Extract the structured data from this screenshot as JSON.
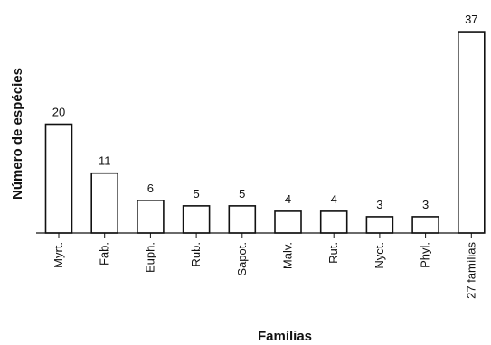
{
  "chart_data": {
    "type": "bar",
    "xlabel": "Famílias",
    "ylabel": "Número de espécies",
    "categories": [
      "Myrt.",
      "Fab.",
      "Euph.",
      "Rub.",
      "Sapot.",
      "Malv.",
      "Rut.",
      "Nyct.",
      "Phyl.",
      "27 famílias"
    ],
    "values": [
      20,
      11,
      6,
      5,
      5,
      4,
      4,
      3,
      3,
      37
    ],
    "ylim": [
      0,
      40
    ],
    "grid": false,
    "colors": {
      "bar_fill": "#ffffff",
      "bar_stroke": "#111111"
    }
  }
}
